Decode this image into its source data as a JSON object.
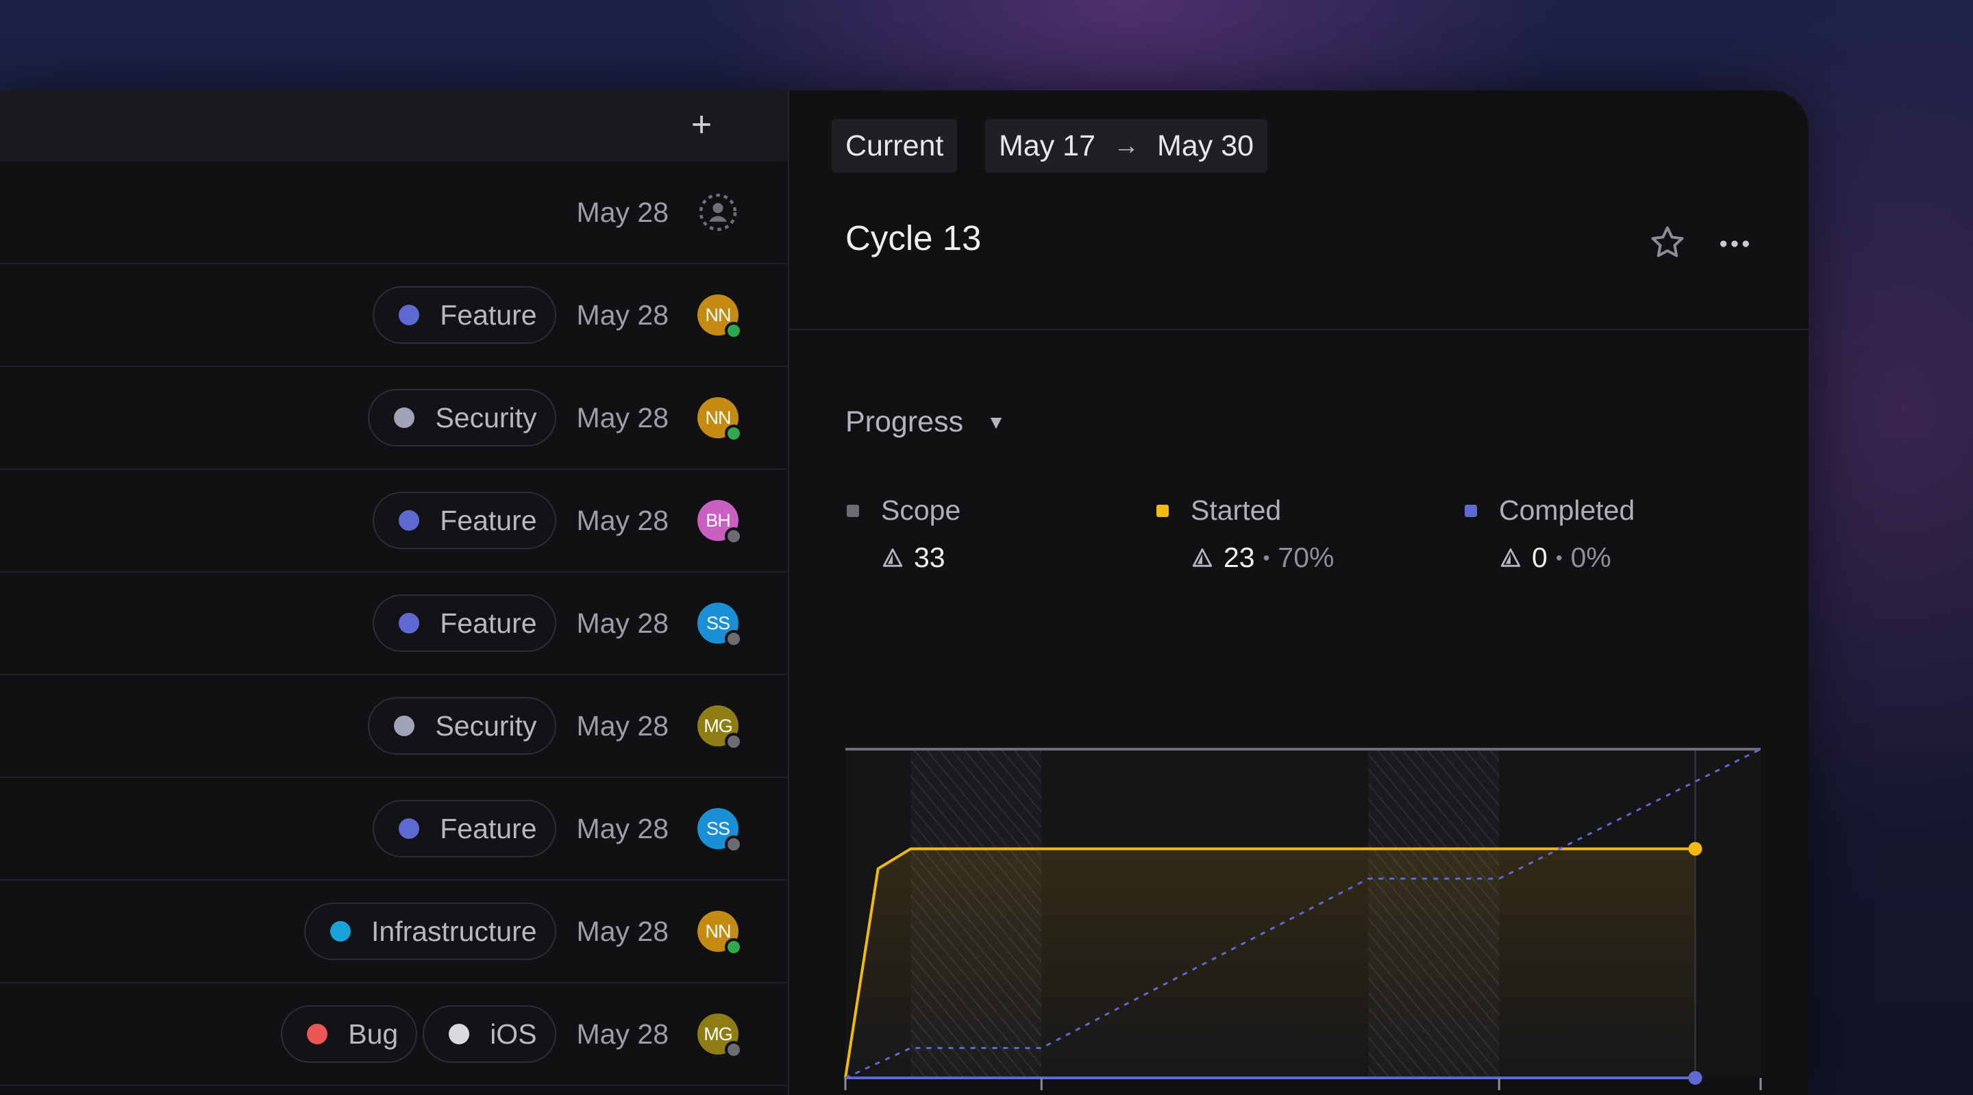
{
  "list": {
    "add_label": "+",
    "rows": [
      {
        "labels": [],
        "date": "May 28",
        "assignee": null
      },
      {
        "labels": [
          {
            "name": "Feature",
            "color": "#5e6ad2"
          }
        ],
        "date": "May 28",
        "assignee": {
          "initials": "NN",
          "color": "#c58a12",
          "status": "#2fa84f"
        }
      },
      {
        "labels": [
          {
            "name": "Security",
            "color": "#9ea3b8"
          }
        ],
        "date": "May 28",
        "assignee": {
          "initials": "NN",
          "color": "#c58a12",
          "status": "#2fa84f"
        }
      },
      {
        "labels": [
          {
            "name": "Feature",
            "color": "#5e6ad2"
          }
        ],
        "date": "May 28",
        "assignee": {
          "initials": "BH",
          "color": "#c95fc0",
          "status": "#6b6b72"
        }
      },
      {
        "labels": [
          {
            "name": "Feature",
            "color": "#5e6ad2"
          }
        ],
        "date": "May 28",
        "assignee": {
          "initials": "SS",
          "color": "#1b8fd6",
          "status": "#6b6b72"
        }
      },
      {
        "labels": [
          {
            "name": "Security",
            "color": "#9ea3b8"
          }
        ],
        "date": "May 28",
        "assignee": {
          "initials": "MG",
          "color": "#8d7d12",
          "status": "#6b6b72"
        }
      },
      {
        "labels": [
          {
            "name": "Feature",
            "color": "#5e6ad2"
          }
        ],
        "date": "May 28",
        "assignee": {
          "initials": "SS",
          "color": "#1b8fd6",
          "status": "#6b6b72"
        }
      },
      {
        "labels": [
          {
            "name": "Infrastructure",
            "color": "#17a3d6"
          }
        ],
        "date": "May 28",
        "assignee": {
          "initials": "NN",
          "color": "#c58a12",
          "status": "#2fa84f"
        }
      },
      {
        "labels": [
          {
            "name": "Bug",
            "color": "#eb5757"
          },
          {
            "name": "iOS",
            "color": "#d9d9de"
          }
        ],
        "date": "May 28",
        "assignee": {
          "initials": "MG",
          "color": "#8d7d12",
          "status": "#6b6b72"
        }
      }
    ]
  },
  "cycle": {
    "current_label": "Current",
    "range_start": "May 17",
    "range_arrow": "→",
    "range_end": "May 30",
    "title": "Cycle 13",
    "progress_label": "Progress",
    "progress_caret": "▼",
    "stats": [
      {
        "name": "Scope",
        "value": "33",
        "percent": "",
        "color": "#6c6d74"
      },
      {
        "name": "Started",
        "value": "23",
        "percent": "70%",
        "color": "#f2b90f"
      },
      {
        "name": "Completed",
        "value": "0",
        "percent": "0%",
        "color": "#5e6ad2"
      }
    ]
  },
  "chart_data": {
    "type": "line",
    "x_axis_ticks": [
      "May 17",
      "May 20",
      "May 27",
      "May 31"
    ],
    "xlim": [
      "May 17",
      "May 31"
    ],
    "ylim": [
      0,
      33
    ],
    "weekend_bands": [
      [
        "May 18",
        "May 20"
      ],
      [
        "May 25",
        "May 27"
      ]
    ],
    "series": [
      {
        "name": "Scope",
        "color": "#6c6d74",
        "points": [
          [
            "May 17",
            33
          ],
          [
            "May 31",
            33
          ]
        ]
      },
      {
        "name": "Started",
        "color": "#f2b90f",
        "points": [
          [
            "May 17",
            0
          ],
          [
            "May 17.5",
            21
          ],
          [
            "May 18",
            23
          ],
          [
            "May 30",
            23
          ]
        ]
      },
      {
        "name": "Completed",
        "color": "#5e6ad2",
        "points": [
          [
            "May 17",
            0
          ],
          [
            "May 30",
            0
          ]
        ]
      },
      {
        "name": "",
        "color": "#5e6ad2",
        "style": "dashed",
        "points": [
          [
            "May 17",
            0
          ],
          [
            "May 18",
            3
          ],
          [
            "May 20",
            3
          ],
          [
            "May 25",
            20
          ],
          [
            "May 27",
            20
          ],
          [
            "May 31",
            33
          ]
        ]
      }
    ]
  }
}
